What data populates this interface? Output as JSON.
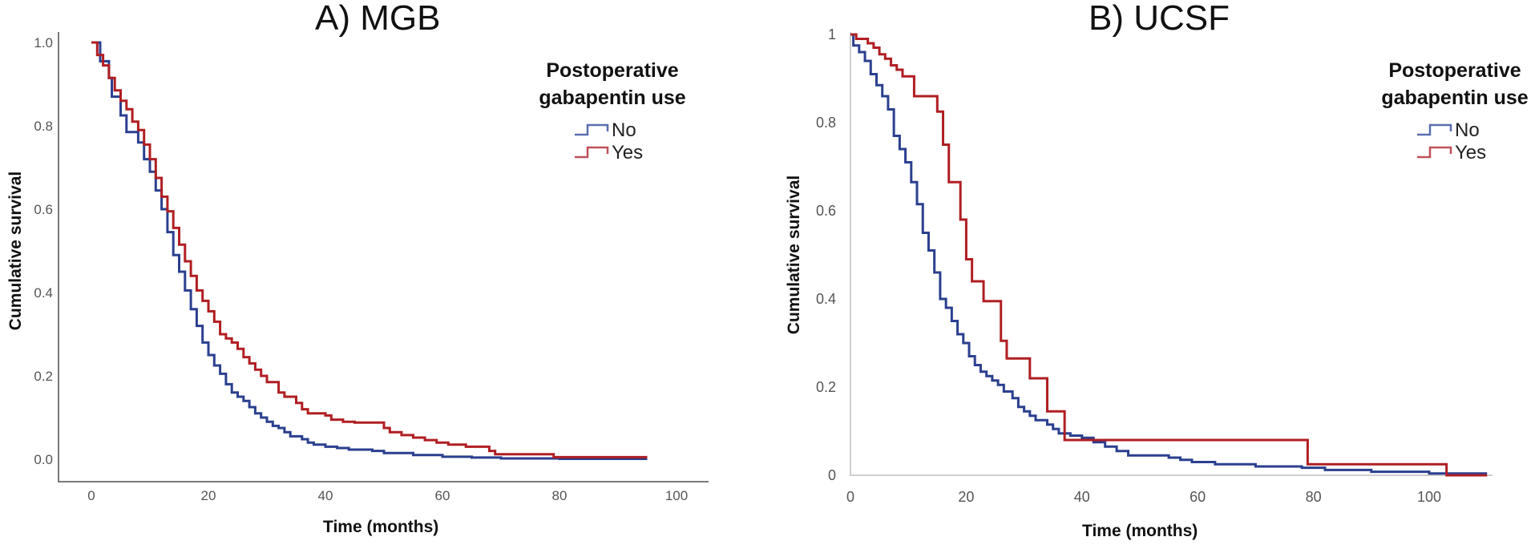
{
  "chart_data": [
    {
      "type": "line",
      "subtype": "kaplan-meier step",
      "title": "A) MGB",
      "xlabel": "Time (months)",
      "ylabel": "Cumulative survival",
      "xlim": [
        0,
        100
      ],
      "ylim": [
        0,
        1
      ],
      "xticks": [
        "0",
        "20",
        "40",
        "60",
        "80",
        "100"
      ],
      "yticks": [
        "0.0",
        "0.2",
        "0.4",
        "0.6",
        "0.8",
        "1.0"
      ],
      "grid": false,
      "legend": {
        "title_line1": "Postoperative",
        "title_line2": "gabapentin use",
        "placement": "top-right"
      },
      "series": [
        {
          "name": "No",
          "color": "#2b3f8f",
          "x": [
            0,
            1.5,
            3,
            3.5,
            5,
            6,
            8,
            9,
            10,
            11,
            12,
            13,
            14,
            15,
            16,
            17,
            18,
            19,
            20,
            21,
            22,
            23,
            24,
            25,
            26,
            27,
            28,
            29,
            30,
            31,
            32,
            33,
            34,
            36,
            37,
            38,
            40,
            42,
            44,
            48,
            50,
            55,
            60,
            65,
            70,
            80,
            95
          ],
          "y": [
            1.0,
            0.955,
            0.915,
            0.87,
            0.825,
            0.785,
            0.76,
            0.72,
            0.69,
            0.645,
            0.6,
            0.545,
            0.49,
            0.45,
            0.405,
            0.36,
            0.32,
            0.28,
            0.25,
            0.225,
            0.205,
            0.18,
            0.16,
            0.15,
            0.14,
            0.125,
            0.11,
            0.1,
            0.09,
            0.08,
            0.075,
            0.065,
            0.055,
            0.048,
            0.04,
            0.035,
            0.03,
            0.027,
            0.023,
            0.02,
            0.015,
            0.01,
            0.006,
            0.004,
            0.002,
            0.001,
            0.001
          ]
        },
        {
          "name": "Yes",
          "color": "#b01e23",
          "x": [
            0,
            1,
            2,
            3,
            4,
            5,
            6,
            7,
            8,
            9,
            10,
            11,
            12,
            13,
            14,
            15,
            16,
            17,
            18,
            19,
            20,
            21,
            22,
            23,
            24,
            25,
            26,
            27,
            28,
            29,
            30,
            32,
            33,
            35,
            36,
            37,
            40,
            41,
            43,
            45,
            50,
            51,
            53,
            55,
            57,
            59,
            61,
            64,
            68,
            69,
            79,
            95
          ],
          "y": [
            1.0,
            0.97,
            0.945,
            0.915,
            0.885,
            0.86,
            0.84,
            0.81,
            0.79,
            0.755,
            0.72,
            0.675,
            0.63,
            0.595,
            0.555,
            0.515,
            0.475,
            0.44,
            0.405,
            0.38,
            0.355,
            0.33,
            0.3,
            0.29,
            0.28,
            0.265,
            0.245,
            0.23,
            0.215,
            0.2,
            0.185,
            0.16,
            0.15,
            0.135,
            0.12,
            0.11,
            0.105,
            0.095,
            0.09,
            0.088,
            0.075,
            0.065,
            0.058,
            0.052,
            0.046,
            0.04,
            0.035,
            0.03,
            0.02,
            0.012,
            0.005,
            0.005
          ]
        }
      ]
    },
    {
      "type": "line",
      "subtype": "kaplan-meier step",
      "title": "B) UCSF",
      "xlabel": "Time (months)",
      "ylabel": "Cumulative survival",
      "xlim": [
        0,
        110
      ],
      "ylim": [
        0,
        1
      ],
      "xticks": [
        "0",
        "20",
        "40",
        "60",
        "80",
        "100"
      ],
      "yticks": [
        "0",
        "0.2",
        "0.4",
        "0.6",
        "0.8",
        "1"
      ],
      "grid": false,
      "legend": {
        "title_line1": "Postoperative",
        "title_line2": "gabapentin use",
        "placement": "top-right"
      },
      "series": [
        {
          "name": "No",
          "color": "#2b3f8f",
          "x": [
            0,
            0.5,
            1.5,
            2.5,
            3.5,
            4.5,
            5.5,
            6.5,
            7.5,
            8.5,
            9.5,
            10.5,
            11.5,
            12.5,
            13.5,
            14.5,
            15.5,
            16.5,
            17.5,
            18.5,
            19.5,
            20.5,
            21.5,
            22.5,
            23.5,
            24.5,
            25.5,
            26.5,
            28,
            29,
            30,
            31,
            32,
            34,
            35,
            36,
            38,
            40,
            42,
            44,
            46,
            48,
            55,
            57,
            59,
            63,
            70,
            78,
            82,
            90,
            100,
            110
          ],
          "y": [
            1.0,
            0.975,
            0.96,
            0.94,
            0.91,
            0.885,
            0.86,
            0.83,
            0.77,
            0.74,
            0.71,
            0.665,
            0.615,
            0.55,
            0.51,
            0.46,
            0.4,
            0.38,
            0.35,
            0.32,
            0.3,
            0.27,
            0.25,
            0.235,
            0.225,
            0.215,
            0.205,
            0.19,
            0.175,
            0.155,
            0.145,
            0.135,
            0.125,
            0.115,
            0.105,
            0.095,
            0.09,
            0.085,
            0.075,
            0.065,
            0.055,
            0.045,
            0.04,
            0.035,
            0.03,
            0.025,
            0.02,
            0.017,
            0.012,
            0.008,
            0.004,
            0.004
          ]
        },
        {
          "name": "Yes",
          "color": "#b01e23",
          "x": [
            0,
            1,
            3,
            4,
            5,
            6,
            7,
            8,
            9,
            11,
            15,
            16,
            17,
            19,
            20,
            21,
            23,
            26,
            27,
            31,
            34,
            37,
            79,
            103,
            110
          ],
          "y": [
            1.0,
            0.99,
            0.98,
            0.97,
            0.955,
            0.945,
            0.93,
            0.92,
            0.905,
            0.86,
            0.825,
            0.75,
            0.665,
            0.58,
            0.49,
            0.44,
            0.395,
            0.305,
            0.265,
            0.22,
            0.145,
            0.08,
            0.025,
            0.0,
            0.0
          ]
        }
      ]
    }
  ]
}
